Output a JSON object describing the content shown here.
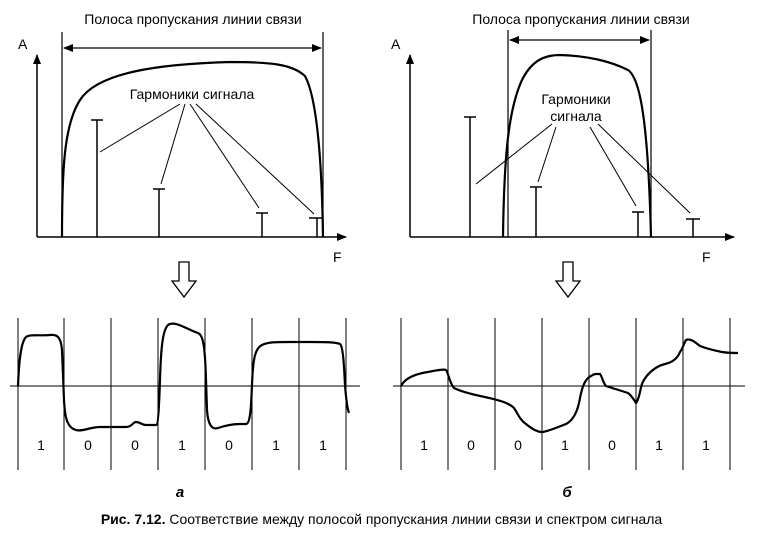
{
  "figure": {
    "caption_number": "Рис. 7.12.",
    "caption_text": "Соответствие между полосой пропускания линии связи и спектром сигнала",
    "panels": [
      {
        "label": "а",
        "bandwidth_label": "Полоса пропускания линии связи",
        "harmonics_label_line1": "Гармоники сигнала",
        "harmonics_label_line2": "",
        "y_axis_label": "A",
        "x_axis_label": "F",
        "bits": [
          "1",
          "0",
          "0",
          "1",
          "0",
          "1",
          "1"
        ]
      },
      {
        "label": "б",
        "bandwidth_label": "Полоса пропускания линии связи",
        "harmonics_label_line1": "Гармоники",
        "harmonics_label_line2": "сигнала",
        "y_axis_label": "A",
        "x_axis_label": "F",
        "bits": [
          "1",
          "0",
          "0",
          "1",
          "0",
          "1",
          "1"
        ]
      }
    ],
    "colors": {
      "ink": "#000000",
      "background": "#ffffff"
    }
  }
}
